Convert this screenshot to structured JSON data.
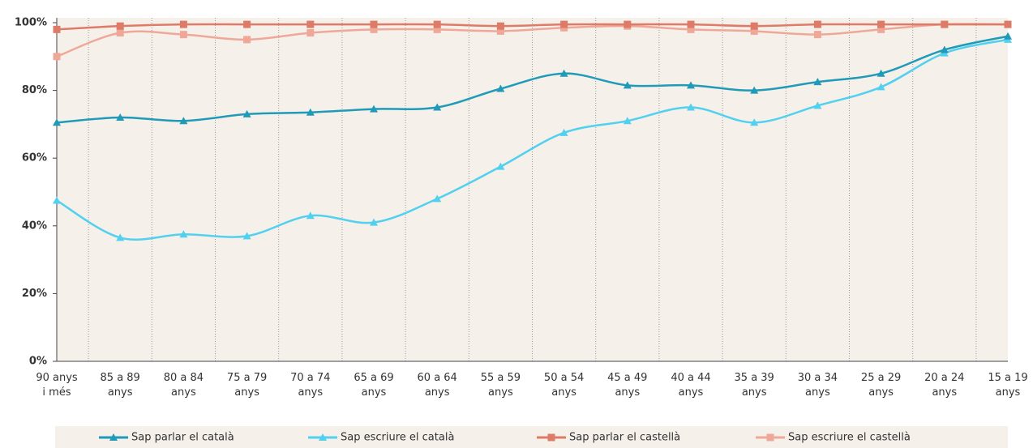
{
  "chart_data": {
    "type": "line",
    "categories": [
      "90 anys\ni més",
      "85 a 89\nanys",
      "80 a 84\nanys",
      "75 a 79\nanys",
      "70 a 74\nanys",
      "65 a 69\nanys",
      "60 a 64\nanys",
      "55 a 59\nanys",
      "50 a 54\nanys",
      "45 a 49\nanys",
      "40 a 44\nanys",
      "35 a 39\nanys",
      "30 a 34\nanys",
      "25 a 29\nanys",
      "20 a 24\nanys",
      "15 a 19\nanys"
    ],
    "series": [
      {
        "name": "Sap parlar el català",
        "color": "#1f9ab8",
        "marker": "triangle",
        "values": [
          70.5,
          72,
          71,
          73,
          73.5,
          74.5,
          75,
          80.5,
          85,
          81.5,
          81.5,
          80,
          82.5,
          85,
          92,
          96
        ]
      },
      {
        "name": "Sap escriure el català",
        "color": "#52d0ef",
        "marker": "triangle",
        "values": [
          47.5,
          36.5,
          37.5,
          37,
          43,
          41,
          48,
          57.5,
          67.5,
          71,
          75,
          70.5,
          75.5,
          81,
          91,
          95
        ]
      },
      {
        "name": "Sap parlar el castellà",
        "color": "#de7b68",
        "marker": "square",
        "values": [
          98,
          99,
          99.5,
          99.5,
          99.5,
          99.5,
          99.5,
          99,
          99.5,
          99.5,
          99.5,
          99,
          99.5,
          99.5,
          99.5,
          99.5
        ]
      },
      {
        "name": "Sap escriure el castellà",
        "color": "#efa898",
        "marker": "square",
        "values": [
          90,
          97,
          96.5,
          95,
          97,
          98,
          98,
          97.5,
          98.5,
          99,
          98,
          97.5,
          96.5,
          98,
          99.5,
          99.5
        ]
      }
    ],
    "ylim": [
      0,
      100
    ],
    "yticks": [
      {
        "value": 0,
        "label": "0%"
      },
      {
        "value": 20,
        "label": "20%"
      },
      {
        "value": 40,
        "label": "40%"
      },
      {
        "value": 60,
        "label": "60%"
      },
      {
        "value": 80,
        "label": "80%"
      },
      {
        "value": 100,
        "label": "100%"
      }
    ],
    "grid": false,
    "legend": "bottom"
  }
}
